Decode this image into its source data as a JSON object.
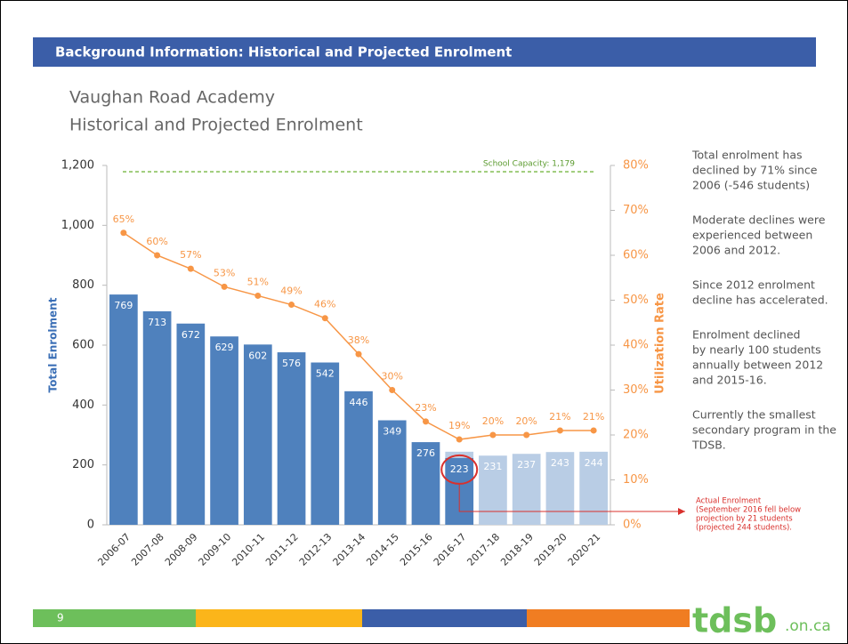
{
  "header": {
    "title": "Background Information:  Historical and Projected Enrolment"
  },
  "chart_data": {
    "type": "bar",
    "title": "Vaughan Road Academy",
    "subtitle": "Historical and Projected Enrolment",
    "ylabel": "Total Enrolment",
    "y2label": "Utilization Rate",
    "categories": [
      "2006-07",
      "2007-08",
      "2008-09",
      "2009-10",
      "2010-11",
      "2011-12",
      "2012-13",
      "2013-14",
      "2014-15",
      "2015-16",
      "2016-17",
      "2017-18",
      "2018-19",
      "2019-20",
      "2020-21"
    ],
    "series": [
      {
        "color": "#b9cde5",
        "values": [
          null,
          null,
          null,
          null,
          null,
          null,
          null,
          null,
          null,
          null,
          244,
          231,
          237,
          243,
          244
        ]
      },
      {
        "color": "#4f81bd",
        "values": [
          769,
          713,
          672,
          629,
          602,
          576,
          542,
          446,
          349,
          276,
          223,
          null,
          null,
          null,
          null
        ]
      },
      {
        "type": "line",
        "axis": "y2",
        "color": "#f79646",
        "values": [
          65,
          60,
          57,
          53,
          51,
          49,
          46,
          38,
          30,
          23,
          19,
          20,
          20,
          21,
          21
        ],
        "value_labels": [
          "65%",
          "60%",
          "57%",
          "53%",
          "51%",
          "49%",
          "46%",
          "38%",
          "30%",
          "23%",
          "19%",
          "20%",
          "20%",
          "21%",
          "21%"
        ]
      }
    ],
    "ylim": [
      0,
      1200
    ],
    "yticks": [
      0,
      200,
      400,
      600,
      800,
      {
        "value": 1000,
        "label": "1,000"
      },
      {
        "value": 1200,
        "label": "1,200"
      }
    ],
    "y2lim": [
      0,
      80
    ],
    "y2ticks": [
      {
        "value": 0,
        "label": "0%"
      },
      {
        "value": 10,
        "label": "10%"
      },
      {
        "value": 20,
        "label": "20%"
      },
      {
        "value": 30,
        "label": "30%"
      },
      {
        "value": 40,
        "label": "40%"
      },
      {
        "value": 50,
        "label": "50%"
      },
      {
        "value": 60,
        "label": "60%"
      },
      {
        "value": 70,
        "label": "70%"
      },
      {
        "value": 80,
        "label": "80%"
      }
    ],
    "capacity": {
      "value": 1179,
      "label": "School Capacity: 1,179",
      "color": "#77b843"
    },
    "annotation": {
      "color": "#d9302c",
      "index": 10,
      "lines": [
        "Actual Enrolment",
        "(September 2016 fell below",
        "projection by 21 students",
        "(projected 244 students)."
      ]
    }
  },
  "notes": [
    [
      "Total enrolment has",
      "declined by 71% since",
      "2006 (-546 students)"
    ],
    [
      "Moderate declines were",
      "experienced between",
      "2006 and 2012."
    ],
    [
      "Since 2012 enrolment",
      "decline has accelerated."
    ],
    [
      "Enrolment declined",
      "by nearly 100 students",
      "annually between 2012",
      "and 2015-16."
    ],
    [
      "Currently the smallest",
      "secondary program in the",
      "TDSB."
    ]
  ],
  "footer": {
    "page": "9",
    "logo": "tdsb",
    "logo_suffix": ".on.ca"
  }
}
